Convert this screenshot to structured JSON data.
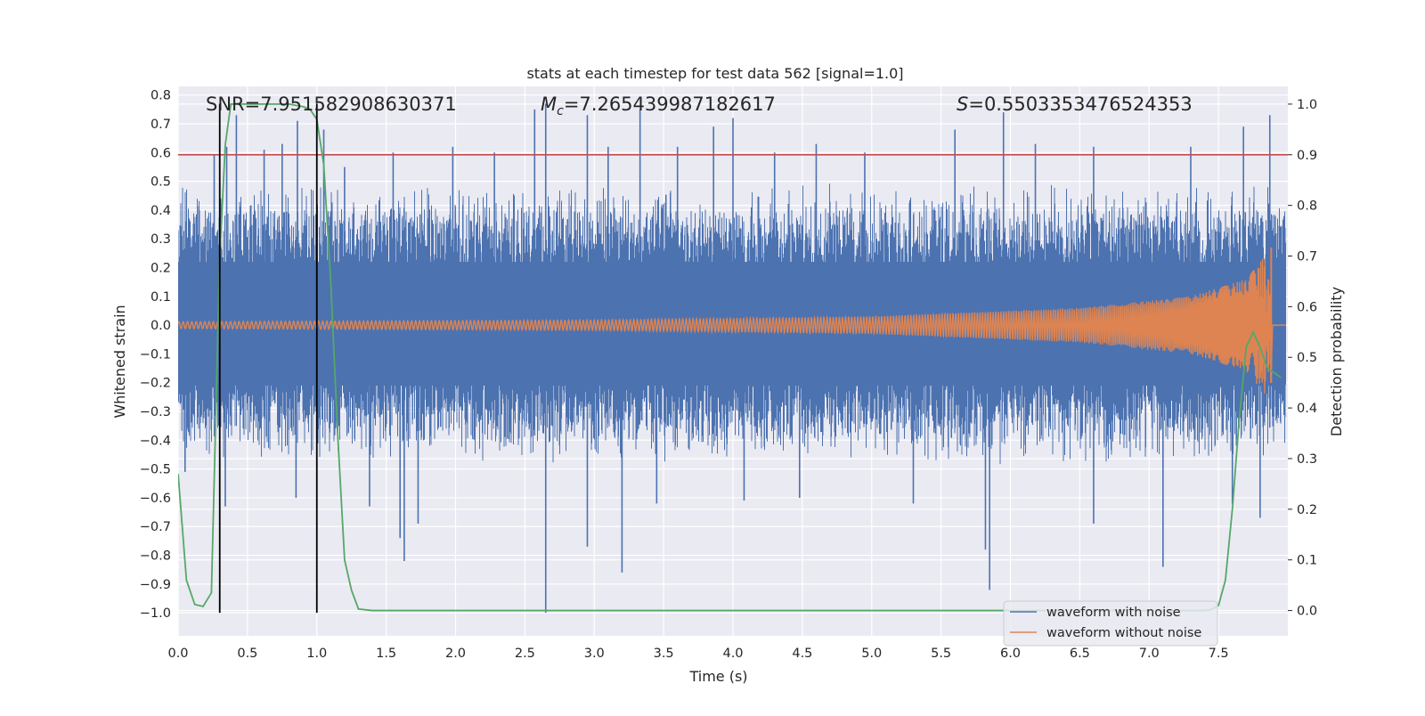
{
  "chart_data": {
    "type": "line",
    "title": "stats at each timestep for test data 562 [signal=1.0]",
    "xlabel": "Time (s)",
    "ylabel": "Whitened strain",
    "ylabel_right": "Detection probability",
    "xlim": [
      0.0,
      8.0
    ],
    "ylim": [
      -1.08,
      0.83
    ],
    "ylim_right": [
      -0.05,
      1.035
    ],
    "x_ticks": [
      "0.0",
      "0.5",
      "1.0",
      "1.5",
      "2.0",
      "2.5",
      "3.0",
      "3.5",
      "4.0",
      "4.5",
      "5.0",
      "5.5",
      "6.0",
      "6.5",
      "7.0",
      "7.5"
    ],
    "y_ticks": [
      "0.8",
      "0.7",
      "0.6",
      "0.5",
      "0.4",
      "0.3",
      "0.2",
      "0.1",
      "0.0",
      "−0.1",
      "−0.2",
      "−0.3",
      "−0.4",
      "−0.5",
      "−0.6",
      "−0.7",
      "−0.8",
      "−0.9",
      "−1.0"
    ],
    "y_ticks_right": [
      "1.0",
      "0.9",
      "0.8",
      "0.7",
      "0.6",
      "0.5",
      "0.4",
      "0.3",
      "0.2",
      "0.1",
      "0.0"
    ],
    "grid": true,
    "legend_position": "lower-right",
    "colors": {
      "noise": "#4c72b0",
      "clean": "#dd8452",
      "probability": "#55a868",
      "threshold": "#c44e52",
      "markers": "#000000",
      "background": "#eaeaf2",
      "grid": "#ffffff"
    },
    "annotations": {
      "snr": "SNR=7.951582908630371",
      "mc_symbol": "M",
      "mc_sub": "c",
      "mc_value": "=7.265439987182617",
      "s_symbol": "S",
      "s_value": "=0.5503353476524353"
    },
    "series": [
      {
        "name": "waveform with noise",
        "description": "whitened strain with noise, roughly spanning -0.5..0.5 with spikes",
        "envelope_upper": 0.47,
        "envelope_lower": -0.46,
        "spikes": [
          [
            0.26,
            0.59
          ],
          [
            0.35,
            0.62
          ],
          [
            0.42,
            0.73
          ],
          [
            0.62,
            0.61
          ],
          [
            0.75,
            0.63
          ],
          [
            0.86,
            0.71
          ],
          [
            1.05,
            0.68
          ],
          [
            1.2,
            0.55
          ],
          [
            1.55,
            0.6
          ],
          [
            1.98,
            0.62
          ],
          [
            2.28,
            0.6
          ],
          [
            2.57,
            0.75
          ],
          [
            2.65,
            0.77
          ],
          [
            2.95,
            0.73
          ],
          [
            3.1,
            0.62
          ],
          [
            3.33,
            0.75
          ],
          [
            3.6,
            0.62
          ],
          [
            3.86,
            0.69
          ],
          [
            4.0,
            0.72
          ],
          [
            4.3,
            0.6
          ],
          [
            4.6,
            0.63
          ],
          [
            4.95,
            0.6
          ],
          [
            5.6,
            0.68
          ],
          [
            5.95,
            0.74
          ],
          [
            6.18,
            0.63
          ],
          [
            6.6,
            0.62
          ],
          [
            7.3,
            0.62
          ],
          [
            7.68,
            0.69
          ],
          [
            7.87,
            0.73
          ],
          [
            0.05,
            -0.51
          ],
          [
            0.34,
            -0.63
          ],
          [
            0.85,
            -0.6
          ],
          [
            1.38,
            -0.63
          ],
          [
            1.6,
            -0.74
          ],
          [
            1.63,
            -0.82
          ],
          [
            1.73,
            -0.69
          ],
          [
            2.65,
            -1.0
          ],
          [
            2.95,
            -0.77
          ],
          [
            3.2,
            -0.86
          ],
          [
            3.45,
            -0.62
          ],
          [
            4.08,
            -0.61
          ],
          [
            4.48,
            -0.6
          ],
          [
            5.3,
            -0.62
          ],
          [
            5.82,
            -0.78
          ],
          [
            5.85,
            -0.92
          ],
          [
            6.6,
            -0.69
          ],
          [
            7.1,
            -0.84
          ],
          [
            7.6,
            -0.62
          ],
          [
            7.8,
            -0.67
          ]
        ]
      },
      {
        "name": "waveform without noise",
        "description": "chirp waveform, amplitude growing to merger near t=7.88 s",
        "amplitude": [
          [
            0.0,
            0.012
          ],
          [
            3.0,
            0.018
          ],
          [
            5.0,
            0.03
          ],
          [
            6.5,
            0.06
          ],
          [
            7.3,
            0.1
          ],
          [
            7.7,
            0.16
          ],
          [
            7.85,
            0.25
          ],
          [
            7.88,
            0.27
          ]
        ],
        "merger_time": 7.88
      },
      {
        "name": "",
        "axis": "right",
        "x": [
          0.0,
          0.06,
          0.12,
          0.18,
          0.24,
          0.3,
          0.34,
          0.38,
          0.44,
          0.5,
          0.6,
          0.7,
          0.8,
          0.9,
          0.95,
          1.0,
          1.05,
          1.1,
          1.15,
          1.2,
          1.25,
          1.3,
          1.4,
          1.6,
          2.0,
          3.0,
          4.0,
          5.0,
          6.0,
          7.0,
          7.4,
          7.45,
          7.5,
          7.55,
          7.6,
          7.65,
          7.7,
          7.75,
          7.8,
          7.85,
          7.9,
          7.95
        ],
        "y": [
          0.27,
          0.06,
          0.012,
          0.008,
          0.035,
          0.7,
          0.92,
          1.0,
          1.0,
          1.0,
          1.0,
          1.0,
          1.0,
          0.995,
          0.99,
          0.97,
          0.88,
          0.65,
          0.35,
          0.1,
          0.04,
          0.003,
          0.0,
          0.0,
          0.0,
          0.0,
          0.0,
          0.0,
          0.0,
          0.0,
          0.0,
          0.002,
          0.01,
          0.06,
          0.2,
          0.38,
          0.52,
          0.55,
          0.52,
          0.48,
          0.47,
          0.46
        ]
      }
    ],
    "threshold_right": 0.9,
    "vertical_lines_x": [
      0.3,
      1.0
    ],
    "legend_entries": [
      "waveform with noise",
      "waveform without noise"
    ]
  }
}
